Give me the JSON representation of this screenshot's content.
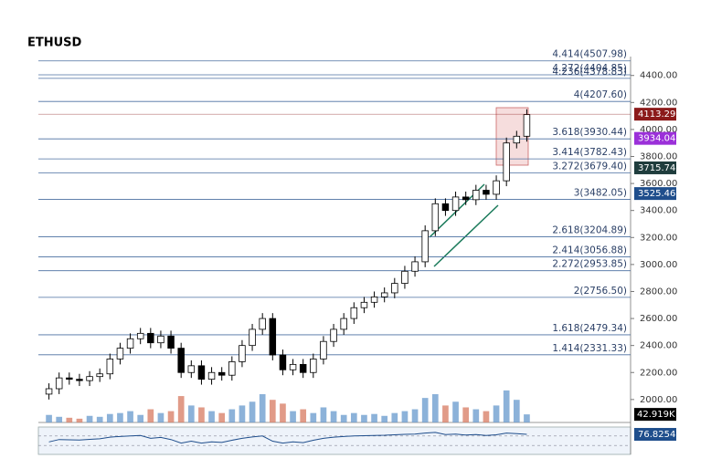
{
  "chart_data": {
    "type": "candlestick",
    "title": "ETHUSD",
    "ylim": [
      1830,
      4540
    ],
    "yticks": [
      {
        "value": 2000,
        "label": "2000.00"
      },
      {
        "value": 2200,
        "label": "2200.00"
      },
      {
        "value": 2400,
        "label": "2400.00"
      },
      {
        "value": 2600,
        "label": "2600.00"
      },
      {
        "value": 2800,
        "label": "2800.00"
      },
      {
        "value": 3000,
        "label": "3000.00"
      },
      {
        "value": 3200,
        "label": "3200.00"
      },
      {
        "value": 3400,
        "label": "3400.00"
      },
      {
        "value": 3600,
        "label": "3600.00"
      },
      {
        "value": 3800,
        "label": "3800.00"
      },
      {
        "value": 4000,
        "label": "4000.00"
      },
      {
        "value": 4200,
        "label": "4200.00"
      },
      {
        "value": 4400,
        "label": "4400.00"
      }
    ],
    "fib_levels": [
      {
        "value": 4507.98,
        "label": "4.414(4507.98)"
      },
      {
        "value": 4404.85,
        "label": "4.272(4404.85)"
      },
      {
        "value": 4378.83,
        "label": "4.236(4378.83)"
      },
      {
        "value": 4207.6,
        "label": "4(4207.60)"
      },
      {
        "value": 3930.44,
        "label": "3.618(3930.44)"
      },
      {
        "value": 3782.43,
        "label": "3.414(3782.43)"
      },
      {
        "value": 3679.4,
        "label": "3.272(3679.40)"
      },
      {
        "value": 3482.05,
        "label": "3(3482.05)"
      },
      {
        "value": 3204.89,
        "label": "2.618(3204.89)"
      },
      {
        "value": 3056.88,
        "label": "2.414(3056.88)"
      },
      {
        "value": 2953.85,
        "label": "2.272(2953.85)"
      },
      {
        "value": 2756.5,
        "label": "2(2756.50)"
      },
      {
        "value": 2479.34,
        "label": "1.618(2479.34)"
      },
      {
        "value": 2331.33,
        "label": "1.414(2331.33)"
      }
    ],
    "price_tags": [
      {
        "value": 4113.29,
        "color": "#8b1a1a"
      },
      {
        "value": 3934.04,
        "color": "#9b30d9"
      },
      {
        "value": 3715.74,
        "color": "#1f3d3d"
      },
      {
        "value": 3525.46,
        "color": "#1f4e8c"
      }
    ],
    "up_color": "#ffffff",
    "down_color": "#000000",
    "open": [
      2040,
      2080,
      2160,
      2150,
      2140,
      2170,
      2190,
      2300,
      2380,
      2450,
      2490,
      2420,
      2470,
      2380,
      2200,
      2250,
      2150,
      2200,
      2180,
      2280,
      2400,
      2520,
      2600,
      2330,
      2220,
      2260,
      2200,
      2300,
      2430,
      2520,
      2600,
      2680,
      2720,
      2760,
      2790,
      2860,
      2950,
      3020,
      3250,
      3450,
      3400,
      3500,
      3480,
      3550,
      3520,
      3620,
      3900,
      3950
    ],
    "high": [
      2120,
      2200,
      2200,
      2190,
      2210,
      2230,
      2340,
      2420,
      2490,
      2530,
      2530,
      2510,
      2510,
      2420,
      2290,
      2290,
      2240,
      2240,
      2320,
      2440,
      2560,
      2640,
      2640,
      2370,
      2300,
      2300,
      2340,
      2470,
      2560,
      2640,
      2720,
      2760,
      2800,
      2830,
      2900,
      2990,
      3060,
      3290,
      3490,
      3490,
      3540,
      3540,
      3590,
      3590,
      3660,
      3940,
      3990,
      4150
    ],
    "low": [
      2000,
      2040,
      2110,
      2100,
      2100,
      2130,
      2150,
      2260,
      2340,
      2410,
      2380,
      2380,
      2340,
      2160,
      2160,
      2110,
      2110,
      2140,
      2140,
      2240,
      2360,
      2480,
      2290,
      2180,
      2180,
      2160,
      2160,
      2260,
      2390,
      2480,
      2560,
      2640,
      2680,
      2720,
      2750,
      2820,
      2910,
      2980,
      3210,
      3360,
      3360,
      3440,
      3440,
      3480,
      3480,
      3580,
      3860,
      3910
    ],
    "close": [
      2080,
      2160,
      2150,
      2140,
      2170,
      2190,
      2300,
      2380,
      2450,
      2490,
      2420,
      2470,
      2380,
      2200,
      2250,
      2150,
      2200,
      2180,
      2280,
      2400,
      2520,
      2600,
      2330,
      2220,
      2260,
      2200,
      2300,
      2430,
      2520,
      2600,
      2680,
      2720,
      2760,
      2790,
      2860,
      2950,
      3020,
      3250,
      3450,
      3400,
      3500,
      3480,
      3550,
      3520,
      3620,
      3900,
      3950,
      4110
    ],
    "volume": {
      "ylim": [
        0,
        300
      ],
      "up_color": "#6f9fd0",
      "down_color": "#d9826a",
      "values": [
        40,
        30,
        25,
        20,
        35,
        30,
        45,
        50,
        60,
        40,
        70,
        50,
        60,
        140,
        90,
        80,
        60,
        50,
        70,
        90,
        110,
        150,
        120,
        100,
        60,
        70,
        50,
        80,
        60,
        40,
        50,
        40,
        45,
        35,
        50,
        60,
        70,
        130,
        150,
        90,
        110,
        80,
        70,
        60,
        90,
        170,
        120,
        42.919
      ],
      "last_label": "42.919K"
    },
    "rsi": {
      "ylim": [
        0,
        100
      ],
      "levels": [
        70,
        30
      ],
      "color": "#1f4e8c",
      "values": [
        45,
        55,
        54,
        53,
        56,
        58,
        65,
        68,
        70,
        72,
        60,
        64,
        55,
        40,
        48,
        40,
        45,
        43,
        52,
        60,
        66,
        70,
        48,
        40,
        45,
        42,
        52,
        60,
        65,
        68,
        70,
        71,
        72,
        73,
        75,
        77,
        78,
        82,
        85,
        76,
        78,
        74,
        76,
        72,
        75,
        82,
        80,
        76.8254
      ]
    }
  }
}
